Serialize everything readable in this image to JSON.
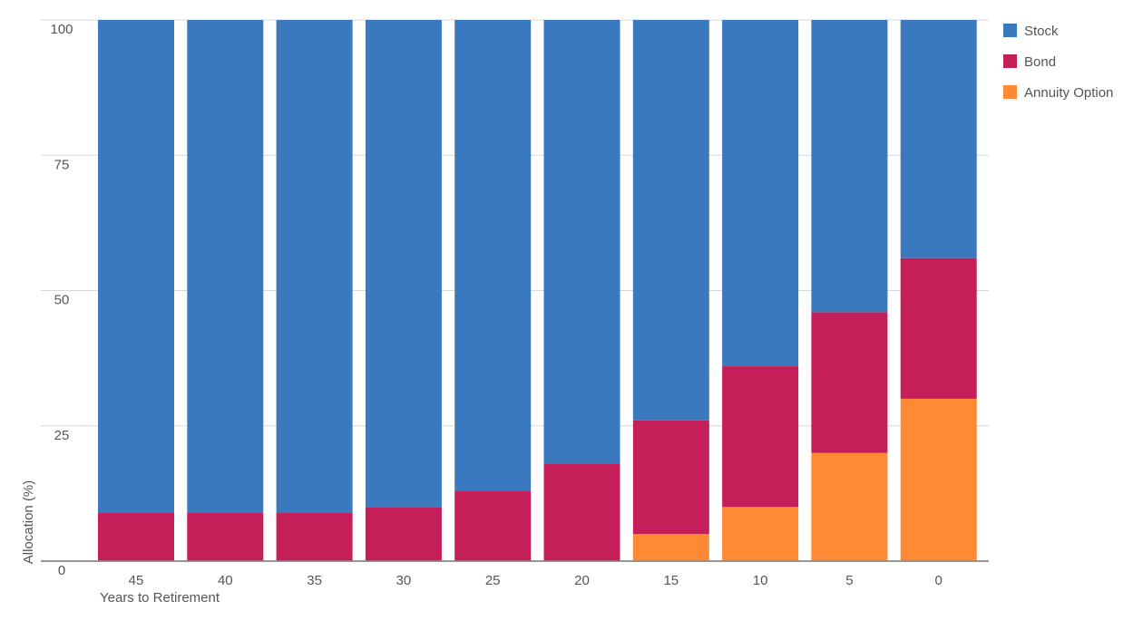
{
  "chart_data": {
    "type": "bar",
    "stacked": true,
    "categories": [
      "45",
      "40",
      "35",
      "30",
      "25",
      "20",
      "15",
      "10",
      "5",
      "0"
    ],
    "series": [
      {
        "name": "Annuity Option",
        "color": "#FF8A33",
        "values": [
          0,
          0,
          0,
          0,
          0,
          0,
          5,
          10,
          20,
          30
        ]
      },
      {
        "name": "Bond",
        "color": "#C51F5A",
        "values": [
          9,
          9,
          9,
          10,
          13,
          18,
          21,
          26,
          26,
          26
        ]
      },
      {
        "name": "Stock",
        "color": "#3A79BE",
        "values": [
          91,
          91,
          91,
          90,
          87,
          82,
          74,
          64,
          54,
          44
        ]
      }
    ],
    "legend_order": [
      "Stock",
      "Bond",
      "Annuity Option"
    ],
    "legend_position": "top-right",
    "xlabel": "Years to Retirement",
    "ylabel": "Allocation (%)",
    "ylim": [
      0,
      100
    ],
    "yticks": [
      0,
      25,
      50,
      75,
      100
    ],
    "grid": true
  }
}
